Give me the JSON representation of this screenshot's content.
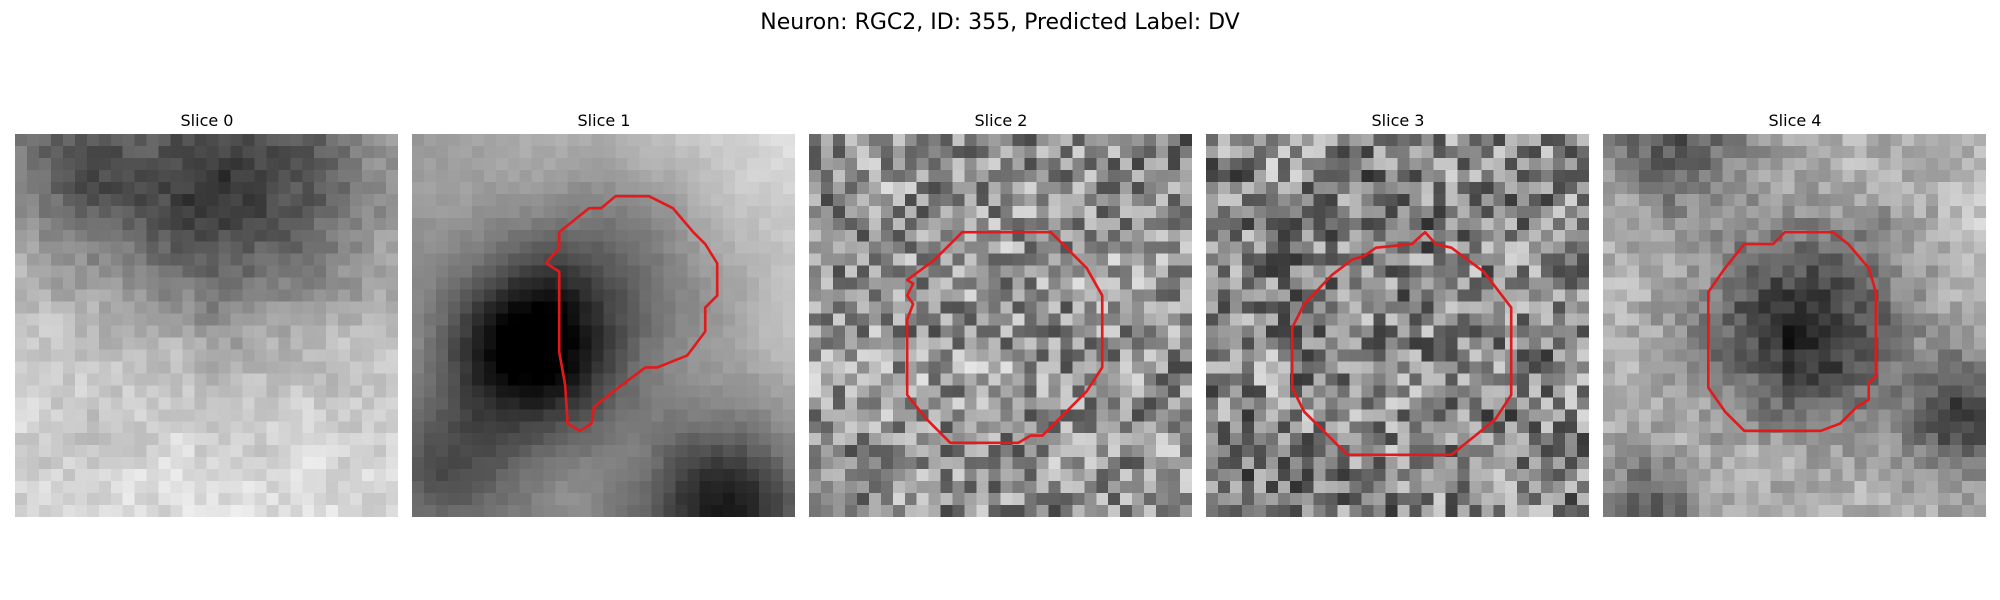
{
  "title": "Neuron: RGC2, ID: 355, Predicted Label: DV",
  "panels": [
    {
      "title": "Slice 0",
      "has_contour": false,
      "seed": 11
    },
    {
      "title": "Slice 1",
      "has_contour": true,
      "seed": 23
    },
    {
      "title": "Slice 2",
      "has_contour": true,
      "seed": 37
    },
    {
      "title": "Slice 3",
      "has_contour": true,
      "seed": 41
    },
    {
      "title": "Slice 4",
      "has_contour": true,
      "seed": 53
    }
  ],
  "contour_color": "#e31a1c"
}
